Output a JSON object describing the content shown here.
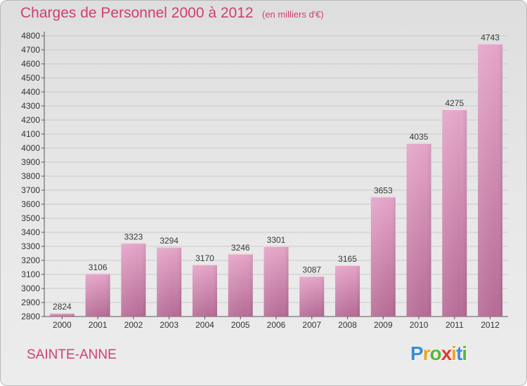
{
  "header": {
    "title": "Charges de Personnel 2000 à 2012",
    "subtitle": "(en milliers d'€)"
  },
  "footer": {
    "commune": "SAINTE-ANNE",
    "logo_letters": [
      "P",
      "r",
      "o",
      "x",
      "i",
      "t",
      "i"
    ],
    "logo_colors": [
      "#3a8fd6",
      "#f3a21b",
      "#5bb53b",
      "#e8362f",
      "#f3a21b",
      "#3a8fd6",
      "#5bb53b"
    ]
  },
  "chart_data": {
    "type": "bar",
    "title": "Charges de Personnel 2000 à 2012",
    "subtitle": "(en milliers d'€)",
    "categories": [
      "2000",
      "2001",
      "2002",
      "2003",
      "2004",
      "2005",
      "2006",
      "2007",
      "2008",
      "2009",
      "2010",
      "2011",
      "2012"
    ],
    "values": [
      2824,
      3106,
      3323,
      3294,
      3170,
      3246,
      3301,
      3087,
      3165,
      3653,
      4035,
      4275,
      4743
    ],
    "ylim": [
      2800,
      4800
    ],
    "yticks": [
      2800,
      2900,
      3000,
      3100,
      3200,
      3300,
      3400,
      3500,
      3600,
      3700,
      3800,
      3900,
      4000,
      4100,
      4200,
      4300,
      4400,
      4500,
      4600,
      4700,
      4800
    ],
    "grid": true,
    "bar_color": "#cc7aa5",
    "label_color": "#3a3a3a"
  }
}
